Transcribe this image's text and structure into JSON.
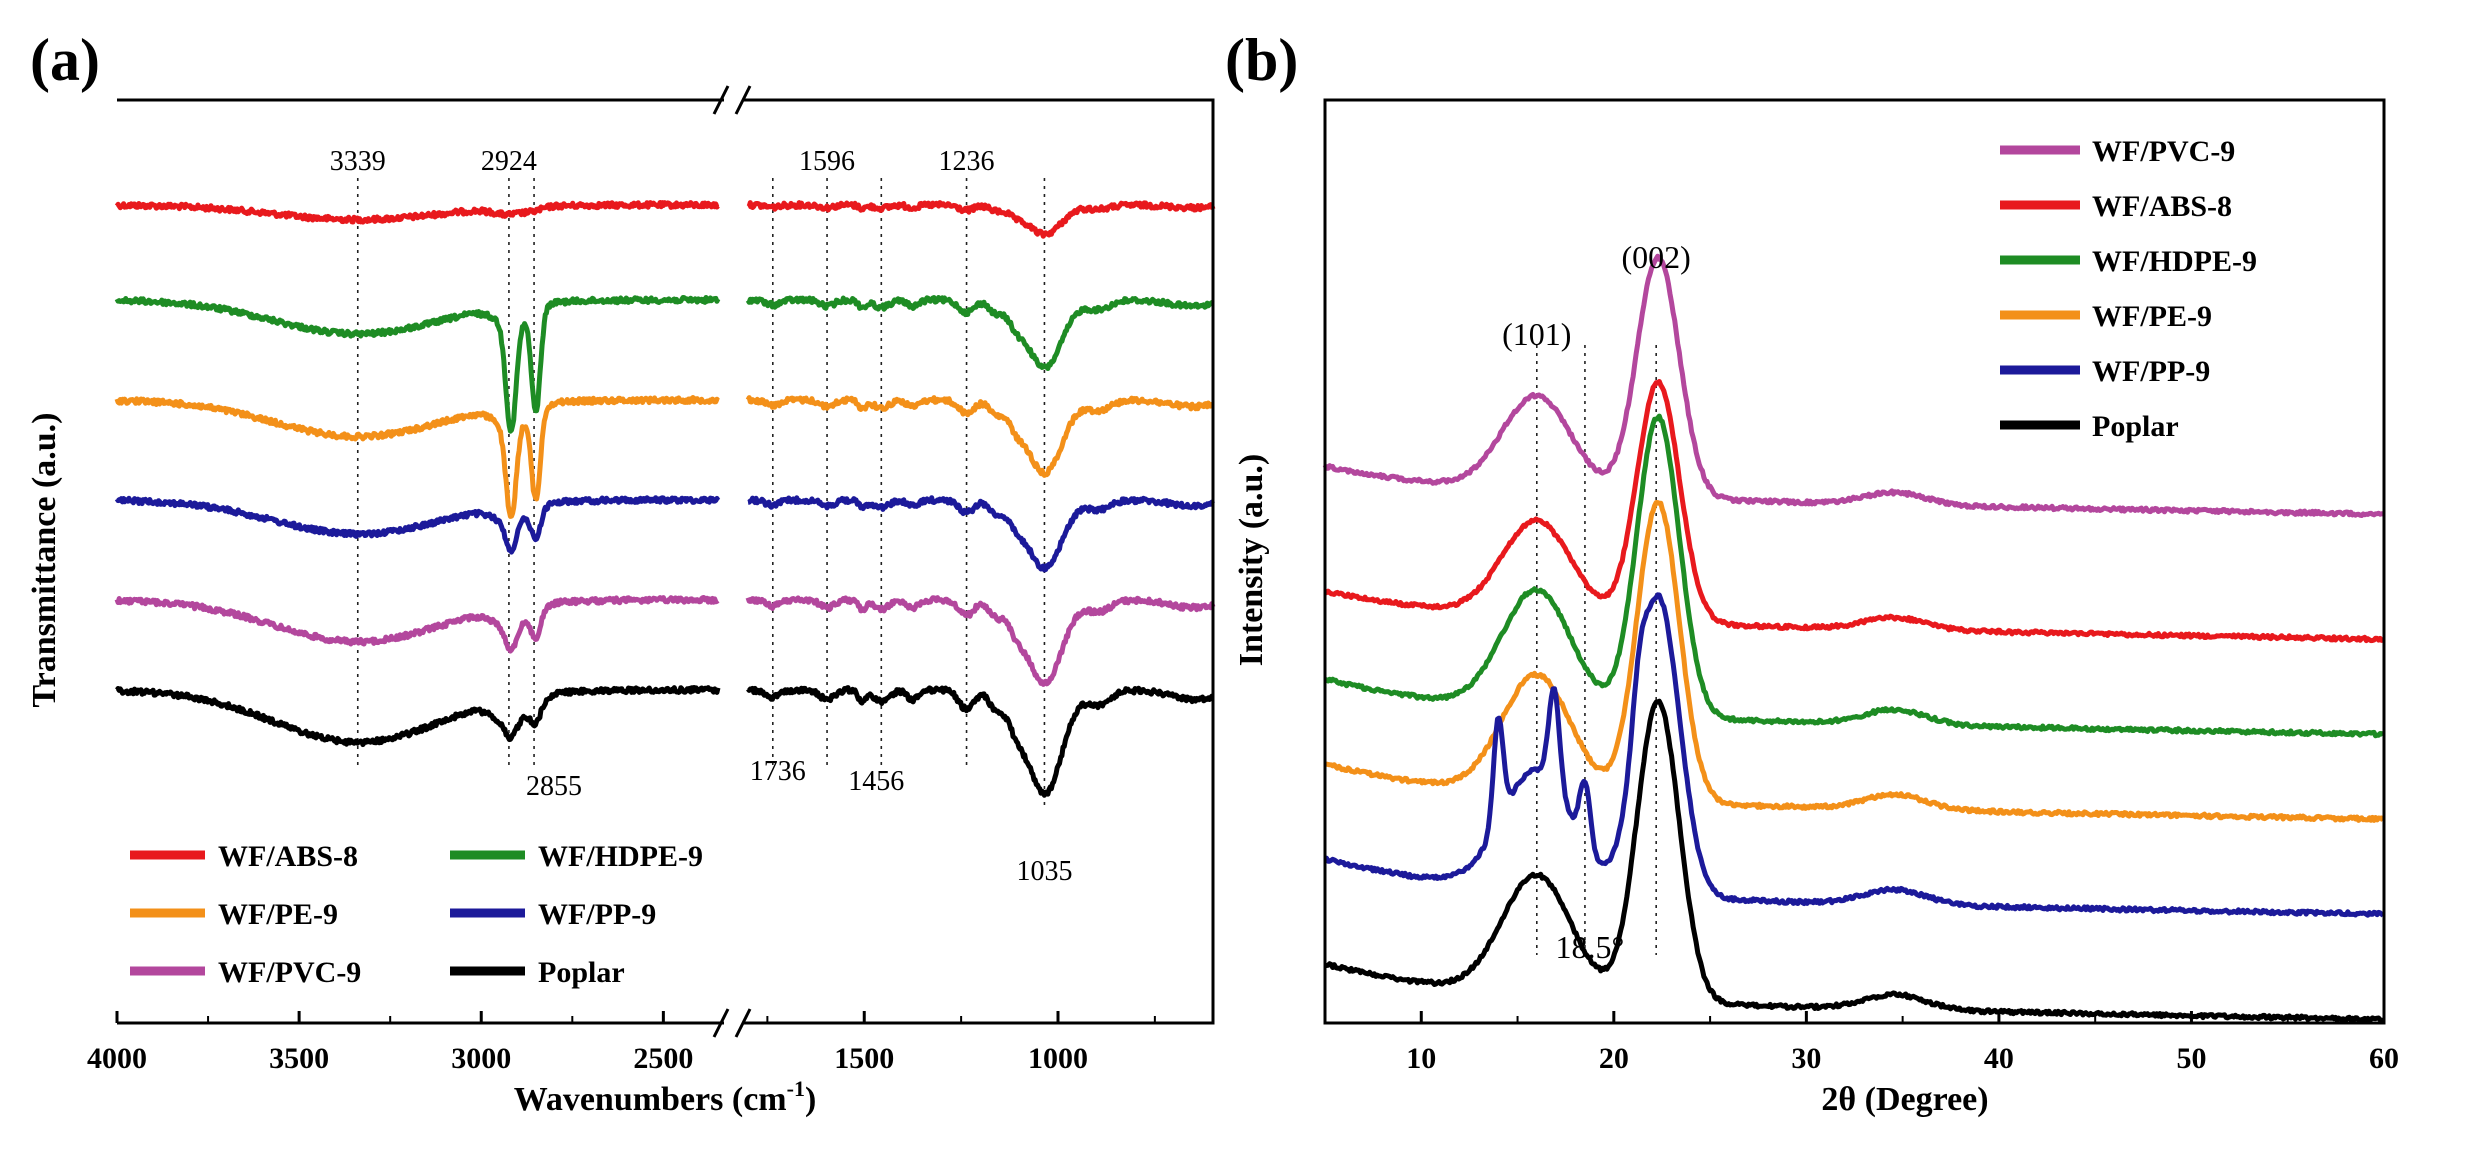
{
  "chart_data": [
    {
      "panel": "(a)",
      "type": "line",
      "title": "",
      "xlabel": "Wavenumbers (cm",
      "xlabel_sup": "-1",
      "xlabel_tail": ")",
      "ylabel": "Transmittance (a.u.)",
      "x_segments": [
        [
          4000,
          2350
        ],
        [
          1800,
          600
        ]
      ],
      "x_reversed": true,
      "xticks": [
        4000,
        3500,
        3000,
        2500,
        1500,
        1000
      ],
      "xtick_labels": [
        "4000",
        "3500",
        "3000",
        "2500",
        "1500",
        "1000"
      ],
      "y_ticks_shown": false,
      "annotations": [
        {
          "text": "3339",
          "x": 3339,
          "pos": "top"
        },
        {
          "text": "2924",
          "x": 2924,
          "pos": "top"
        },
        {
          "text": "2855",
          "x": 2855,
          "pos": "bottom"
        },
        {
          "text": "1736",
          "x": 1736,
          "pos": "bottom"
        },
        {
          "text": "1596",
          "x": 1596,
          "pos": "top"
        },
        {
          "text": "1456",
          "x": 1456,
          "pos": "bottom"
        },
        {
          "text": "1236",
          "x": 1236,
          "pos": "top"
        },
        {
          "text": "1035",
          "x": 1035,
          "pos": "bottom"
        }
      ],
      "legend_position": "bottom-left",
      "series": [
        {
          "name": "WF/ABS-8",
          "color": "#e8191d",
          "offset": 5,
          "scale": 0.28,
          "pe": 0
        },
        {
          "name": "WF/HDPE-9",
          "color": "#1e8c24",
          "offset": 4,
          "scale": 0.65,
          "pe": 1.15
        },
        {
          "name": "WF/PE-9",
          "color": "#f39019",
          "offset": 3,
          "scale": 0.7,
          "pe": 1.0
        },
        {
          "name": "WF/PP-9",
          "color": "#1c1a9a",
          "offset": 2,
          "scale": 0.65,
          "pe": 0.3
        },
        {
          "name": "WF/PVC-9",
          "color": "#b3479d",
          "offset": 1,
          "scale": 0.8,
          "pe": 0.25
        },
        {
          "name": "Poplar",
          "color": "#000000",
          "offset": 0,
          "scale": 1.0,
          "pe": 0.15
        }
      ]
    },
    {
      "panel": "(b)",
      "type": "line",
      "title": "",
      "xlabel": "2θ (Degree)",
      "ylabel": "Intensity (a.u.)",
      "xlim": [
        5,
        60
      ],
      "xticks": [
        10,
        20,
        30,
        40,
        50,
        60
      ],
      "xtick_labels": [
        "10",
        "20",
        "30",
        "40",
        "50",
        "60"
      ],
      "y_ticks_shown": false,
      "annotations": [
        {
          "text": "(101)",
          "x": 16.0
        },
        {
          "text": "(002)",
          "x": 22.2
        },
        {
          "text": "18.5°",
          "x": 18.5
        }
      ],
      "reference_lines_x": [
        16.0,
        18.5,
        22.2
      ],
      "legend_position": "top-right",
      "series": [
        {
          "name": "WF/PVC-9",
          "color": "#b3479d",
          "offset": 5,
          "crystalline": false
        },
        {
          "name": "WF/ABS-8",
          "color": "#e8191d",
          "offset": 4,
          "crystalline": false
        },
        {
          "name": "WF/HDPE-9",
          "color": "#1e8c24",
          "offset": 3,
          "crystalline": false
        },
        {
          "name": "WF/PE-9",
          "color": "#f39019",
          "offset": 2,
          "crystalline": false
        },
        {
          "name": "WF/PP-9",
          "color": "#1c1a9a",
          "offset": 1,
          "crystalline": true
        },
        {
          "name": "Poplar",
          "color": "#000000",
          "offset": 0,
          "crystalline": false
        }
      ]
    }
  ]
}
